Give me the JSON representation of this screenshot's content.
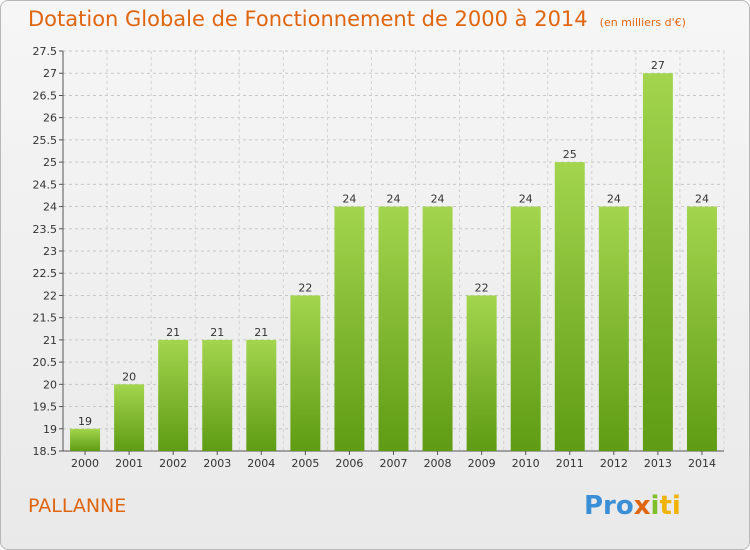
{
  "title": "Dotation Globale de Fonctionnement de 2000 à 2014",
  "subtitle": "(en milliers d'€)",
  "commune": "PALLANNE",
  "logo": {
    "p1": "Pro",
    "p2": "x",
    "p3": "i",
    "p4": "ti"
  },
  "colors": {
    "bar_top": "#9fd24a",
    "bar_bottom": "#5e9a12",
    "title": "#e0650f"
  },
  "chart_data": {
    "type": "bar",
    "categories": [
      "2000",
      "2001",
      "2002",
      "2003",
      "2004",
      "2005",
      "2006",
      "2007",
      "2008",
      "2009",
      "2010",
      "2011",
      "2012",
      "2013",
      "2014"
    ],
    "values": [
      19,
      20,
      21,
      21,
      21,
      22,
      24,
      24,
      24,
      22,
      24,
      25,
      24,
      27,
      24
    ],
    "ylim": [
      18.5,
      27.5
    ],
    "yticks": [
      "18.5",
      "19",
      "19.5",
      "20",
      "20.5",
      "21",
      "21.5",
      "22",
      "22.5",
      "23",
      "23.5",
      "24",
      "24.5",
      "25",
      "25.5",
      "26",
      "26.5",
      "27",
      "27.5"
    ],
    "grid": true
  }
}
